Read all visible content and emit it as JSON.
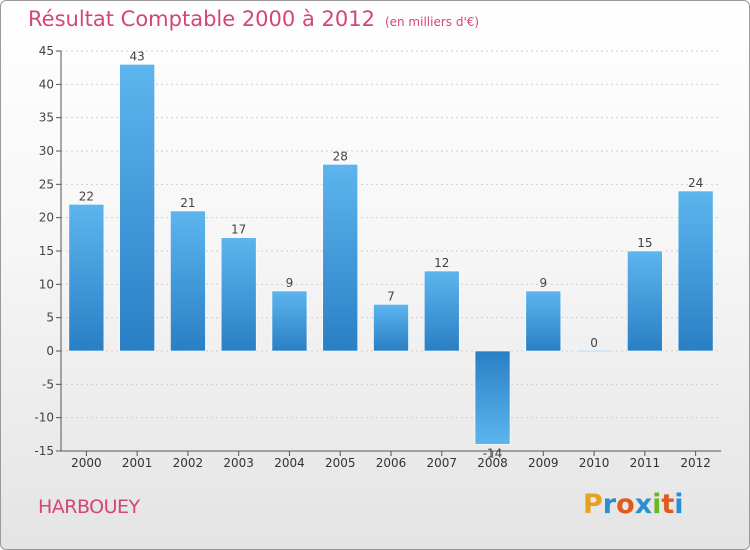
{
  "title": "Résultat Comptable 2000 à 2012",
  "subtitle": "(en milliers d'€)",
  "commune": "HARBOUEY",
  "logo": {
    "letters": [
      "P",
      "r",
      "o",
      "x",
      "i",
      "t",
      "i"
    ],
    "colors": [
      "#e8a020",
      "#2a8fd0",
      "#e05a1a",
      "#2a8fd0",
      "#6ab82a",
      "#e05a1a",
      "#2a8fd0"
    ]
  },
  "colors": {
    "title": "#d4457a",
    "bar_dark": "#2a7fc4",
    "bar_light": "#5db5ee",
    "axis": "#555555",
    "grid": "#cfcfcf"
  },
  "chart_data": {
    "type": "bar",
    "title": "Résultat Comptable 2000 à 2012",
    "subtitle": "(en milliers d'€)",
    "xlabel": "",
    "ylabel": "",
    "categories": [
      "2000",
      "2001",
      "2002",
      "2003",
      "2004",
      "2005",
      "2006",
      "2007",
      "2008",
      "2009",
      "2010",
      "2011",
      "2012"
    ],
    "values": [
      22,
      43,
      21,
      17,
      9,
      28,
      7,
      12,
      -14,
      9,
      0,
      15,
      24
    ],
    "ylim": [
      -15,
      45
    ],
    "yticks": [
      -15,
      -10,
      -5,
      0,
      5,
      10,
      15,
      20,
      25,
      30,
      35,
      40,
      45
    ],
    "grid": true
  }
}
